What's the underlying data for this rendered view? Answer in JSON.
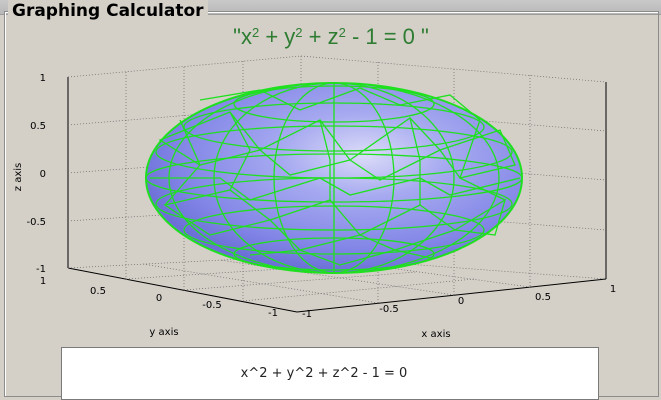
{
  "window": {
    "title": "Graphing Calculator"
  },
  "plot": {
    "title_html": "\"x<tspan baseline-shift=\"super\" font-size=\"13\">2</tspan> + y<tspan baseline-shift=\"super\" font-size=\"13\">2</tspan> + z<tspan baseline-shift=\"super\" font-size=\"13\">2</tspan> - 1 = 0  \"",
    "xlabel": "x axis",
    "ylabel": "y axis",
    "zlabel": "z axis",
    "x_ticks": [
      "-1",
      "-0.5",
      "0",
      "0.5",
      "1"
    ],
    "y_ticks": [
      "1",
      "0.5",
      "0",
      "-0.5",
      "-1"
    ],
    "z_ticks": [
      "1",
      "0.5",
      "0",
      "-0.5",
      "-1"
    ],
    "title_color": "#2e7d32",
    "surface_color": "#8a8ff0",
    "mesh_color": "#1fe01f"
  },
  "equation_input": {
    "value": "x^2 + y^2 + z^2 - 1 = 0"
  }
}
